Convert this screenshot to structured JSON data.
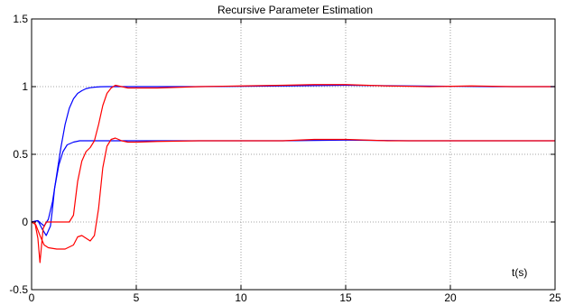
{
  "chart_data": {
    "type": "line",
    "title": "Recursive Parameter Estimation",
    "xlabel": "",
    "ylabel": "",
    "annotation": "t(s)",
    "xlim": [
      0,
      25
    ],
    "ylim": [
      -0.5,
      1.5
    ],
    "xticks": [
      0,
      5,
      10,
      15,
      20,
      25
    ],
    "xtick_labels": [
      "0",
      "5",
      "10",
      "15",
      "20",
      "25"
    ],
    "yticks": [
      -0.5,
      0,
      0.5,
      1,
      1.5
    ],
    "ytick_labels": [
      "-0.5",
      "0",
      "0.5",
      "1",
      "1.5"
    ],
    "grid": true,
    "grid_style": "dotted",
    "series": [
      {
        "color": "#0000ff",
        "x": [
          0,
          0.3,
          0.6,
          0.8,
          1.0,
          1.2,
          1.4,
          1.6,
          1.8,
          2.0,
          2.2,
          2.4,
          2.6,
          2.8,
          3.0,
          3.3,
          3.6,
          4.0,
          5,
          8,
          12,
          15,
          18,
          22,
          25
        ],
        "y": [
          0,
          0.01,
          -0.03,
          0.02,
          0.15,
          0.35,
          0.55,
          0.72,
          0.84,
          0.91,
          0.95,
          0.97,
          0.985,
          0.992,
          0.996,
          0.999,
          1.0,
          1.0,
          1.0,
          1.0,
          1.005,
          1.01,
          1.005,
          1.0,
          1.0
        ]
      },
      {
        "color": "#0000ff",
        "x": [
          0,
          0.3,
          0.5,
          0.7,
          0.9,
          1.0,
          1.1,
          1.3,
          1.5,
          1.7,
          2.0,
          2.3,
          2.6,
          3.0,
          3.5,
          5,
          8,
          12,
          15,
          18,
          22,
          25
        ],
        "y": [
          0,
          0.01,
          -0.05,
          -0.1,
          -0.03,
          0.1,
          0.25,
          0.42,
          0.52,
          0.57,
          0.59,
          0.6,
          0.6,
          0.6,
          0.6,
          0.6,
          0.6,
          0.6,
          0.605,
          0.6,
          0.6,
          0.6
        ]
      },
      {
        "color": "#ff0000",
        "x": [
          0,
          0.15,
          0.3,
          0.4,
          0.55,
          0.7,
          1.0,
          1.3,
          1.6,
          1.8,
          2.0,
          2.2,
          2.4,
          2.6,
          2.8,
          3.0,
          3.2,
          3.4,
          3.6,
          3.8,
          4.0,
          4.3,
          4.6,
          5.0,
          5.5,
          6,
          8,
          10,
          12,
          13.5,
          15,
          17,
          19,
          21,
          23,
          25
        ],
        "y": [
          0,
          0.0,
          -0.12,
          -0.3,
          -0.05,
          0.0,
          0.0,
          0.0,
          0.0,
          0.0,
          0.05,
          0.3,
          0.45,
          0.52,
          0.55,
          0.6,
          0.72,
          0.86,
          0.95,
          0.99,
          1.01,
          1.0,
          0.99,
          0.99,
          0.99,
          0.99,
          1.0,
          1.005,
          1.01,
          1.015,
          1.015,
          1.005,
          1.0,
          1.005,
          1.0,
          1.0
        ]
      },
      {
        "color": "#ff0000",
        "x": [
          0,
          0.2,
          0.4,
          0.6,
          0.8,
          1.2,
          1.6,
          2.0,
          2.2,
          2.4,
          2.6,
          2.8,
          3.0,
          3.2,
          3.4,
          3.6,
          3.8,
          4.0,
          4.3,
          4.6,
          5,
          6,
          8,
          10,
          12,
          13.5,
          15,
          17,
          19,
          21,
          23,
          25
        ],
        "y": [
          0,
          -0.02,
          -0.1,
          -0.17,
          -0.19,
          -0.2,
          -0.2,
          -0.17,
          -0.11,
          -0.1,
          -0.12,
          -0.14,
          -0.1,
          0.1,
          0.4,
          0.56,
          0.61,
          0.62,
          0.6,
          0.59,
          0.59,
          0.595,
          0.6,
          0.6,
          0.6,
          0.61,
          0.61,
          0.6,
          0.6,
          0.6,
          0.6,
          0.6
        ]
      }
    ]
  }
}
